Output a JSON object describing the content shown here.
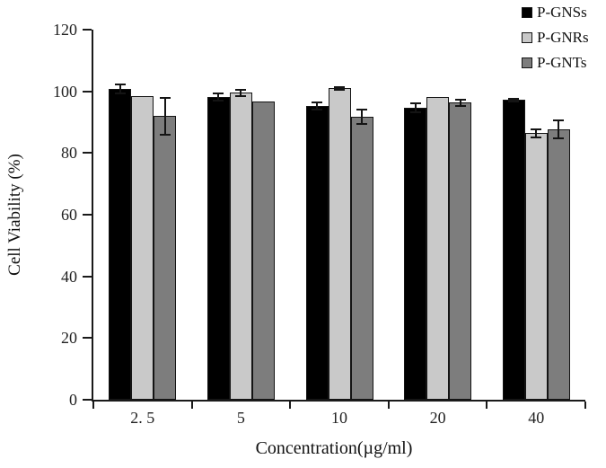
{
  "chart_data": {
    "type": "bar",
    "title": "",
    "xlabel": "Concentration(µg/ml)",
    "ylabel": "Cell Viability (%)",
    "categories": [
      "2. 5",
      "5",
      "10",
      "20",
      "40"
    ],
    "series": [
      {
        "name": "P-GNSs",
        "color": "#000000",
        "values": [
          100.7,
          98.2,
          95.2,
          94.6,
          97.2
        ],
        "errors": [
          1.5,
          1.2,
          1.2,
          1.5,
          0.5
        ]
      },
      {
        "name": "P-GNRs",
        "color": "#c9c9c9",
        "values": [
          98.5,
          99.5,
          101.0,
          98.2,
          86.4
        ],
        "errors": [
          0,
          1.0,
          0.5,
          0,
          1.3
        ]
      },
      {
        "name": "P-GNTs",
        "color": "#7d7d7d",
        "values": [
          92.0,
          96.7,
          91.8,
          96.3,
          87.8
        ],
        "errors": [
          6.0,
          0,
          2.3,
          1.0,
          2.9
        ]
      }
    ],
    "ylim": [
      0,
      120
    ],
    "yticks": [
      0,
      20,
      40,
      60,
      80,
      100,
      120
    ],
    "grid": false,
    "legend_position": "top-right",
    "error_bars": true,
    "axis_color": "#1a1a1a"
  }
}
